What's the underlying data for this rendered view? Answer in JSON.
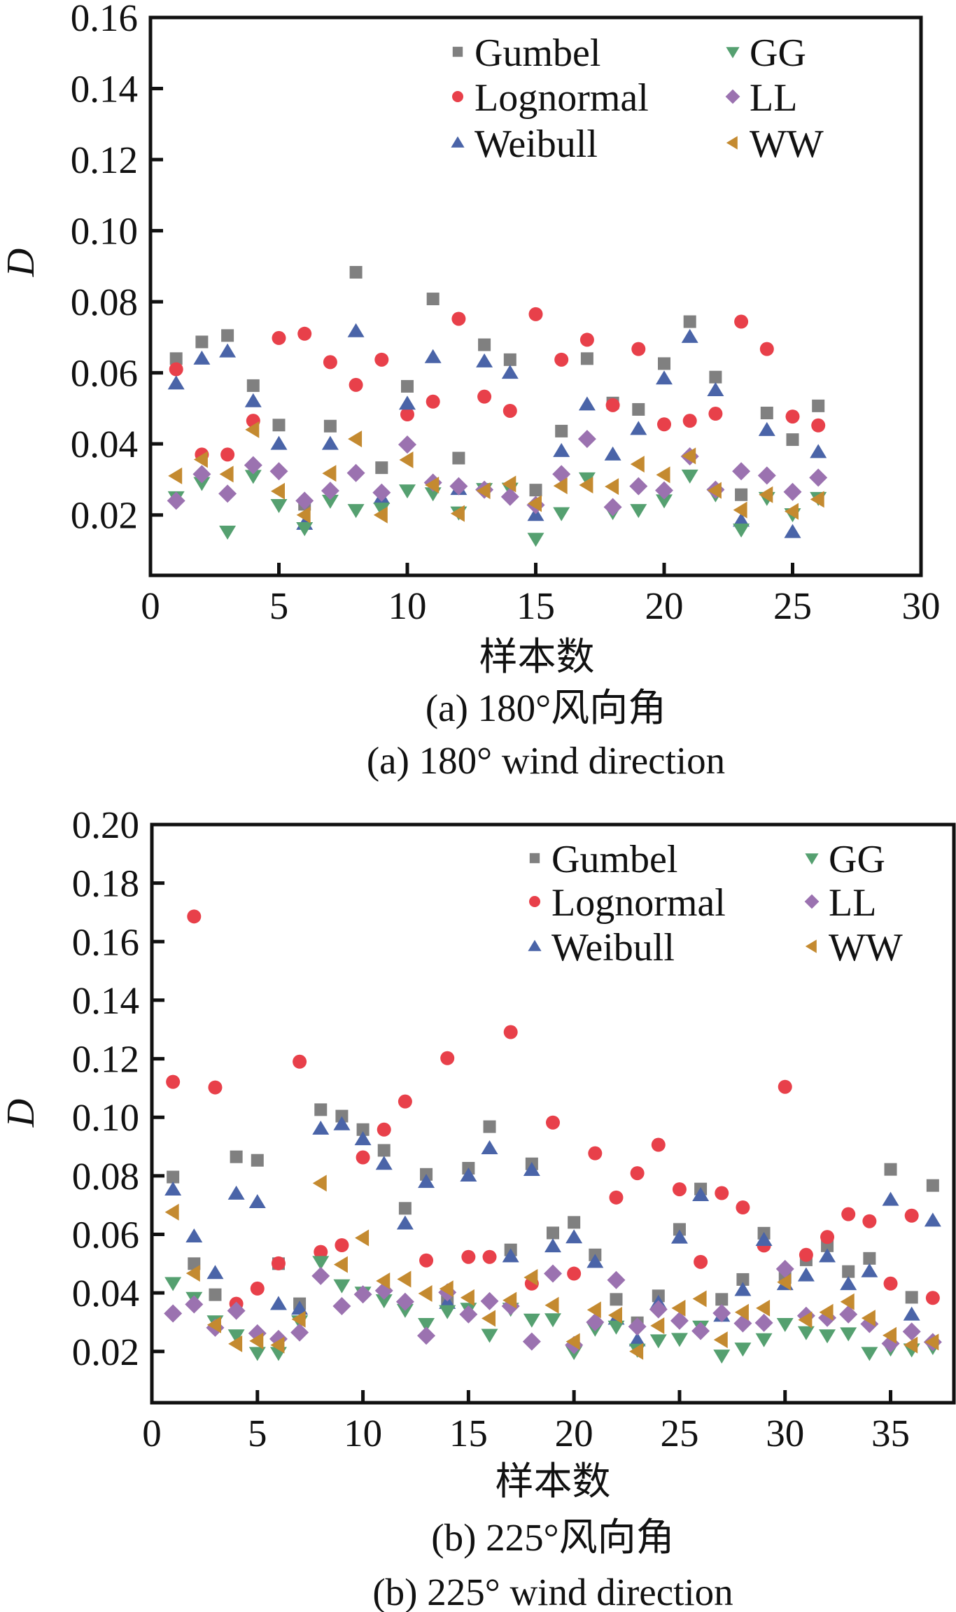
{
  "chart_data": [
    {
      "type": "scatter",
      "id": "a",
      "title": "",
      "xlabel": "样本数",
      "ylabel": "D",
      "caption_cn": "(a)  180°风向角",
      "caption_en": "(a)  180° wind direction",
      "xlim": [
        0,
        30
      ],
      "ylim": [
        0.003,
        0.16
      ],
      "xticks": [
        0,
        5,
        10,
        15,
        20,
        25,
        30
      ],
      "yticks": [
        0.02,
        0.04,
        0.06,
        0.08,
        0.1,
        0.12,
        0.14,
        0.16
      ],
      "ytick_labels": [
        "0.02",
        "0.04",
        "0.06",
        "0.08",
        "0.10",
        "0.12",
        "0.14",
        "0.16"
      ],
      "grid": false,
      "legend_position": "top-right",
      "x": [
        1,
        2,
        3,
        4,
        5,
        6,
        7,
        8,
        9,
        10,
        11,
        12,
        13,
        14,
        15,
        16,
        17,
        18,
        19,
        20,
        21,
        22,
        23,
        24,
        25,
        26
      ],
      "series": [
        {
          "name": "Gumbel",
          "marker": "square",
          "color": "#808080",
          "values": [
            0.064,
            0.0687,
            0.0705,
            0.0564,
            0.0453,
            0.023,
            0.045,
            0.0883,
            0.0333,
            0.0562,
            0.0808,
            0.036,
            0.0679,
            0.0637,
            0.027,
            0.0436,
            0.064,
            0.0515,
            0.0497,
            0.0626,
            0.0744,
            0.0588,
            0.0257,
            0.0487,
            0.0412,
            0.0507
          ]
        },
        {
          "name": "Lognormal",
          "marker": "circle",
          "color": "#e8404a",
          "values": [
            0.061,
            0.037,
            0.037,
            0.0465,
            0.0698,
            0.071,
            0.063,
            0.0566,
            0.0637,
            0.0483,
            0.0519,
            0.0752,
            0.0533,
            0.0493,
            0.0765,
            0.0637,
            0.0693,
            0.0509,
            0.0667,
            0.0455,
            0.0465,
            0.0485,
            0.0744,
            0.0667,
            0.0477,
            0.0452
          ]
        },
        {
          "name": "Weibull",
          "marker": "triangle-up",
          "color": "#4a64a8",
          "values": [
            0.057,
            0.064,
            0.066,
            0.052,
            0.04,
            0.0175,
            0.04,
            0.0717,
            0.0248,
            0.0513,
            0.0644,
            0.0273,
            0.0632,
            0.06,
            0.02,
            0.038,
            0.0511,
            0.037,
            0.0442,
            0.0584,
            0.0701,
            0.0551,
            0.0184,
            0.0439,
            0.0152,
            0.0377
          ]
        },
        {
          "name": "GG",
          "marker": "triangle-down",
          "color": "#55a070",
          "values": [
            0.025,
            0.029,
            0.0153,
            0.031,
            0.0228,
            0.0163,
            0.024,
            0.0214,
            0.0218,
            0.0269,
            0.0261,
            0.0207,
            0.0273,
            0.0274,
            0.0133,
            0.0205,
            0.0303,
            0.0208,
            0.0214,
            0.0241,
            0.0311,
            0.0258,
            0.0159,
            0.0248,
            0.0202,
            0.0248
          ]
        },
        {
          "name": "LL",
          "marker": "diamond",
          "color": "#9b72b0",
          "values": [
            0.024,
            0.0315,
            0.026,
            0.034,
            0.0323,
            0.024,
            0.0268,
            0.0318,
            0.0263,
            0.0398,
            0.0291,
            0.0281,
            0.0271,
            0.0251,
            0.0228,
            0.0315,
            0.0414,
            0.0222,
            0.0281,
            0.0269,
            0.0365,
            0.0271,
            0.0323,
            0.0311,
            0.0265,
            0.0305
          ]
        },
        {
          "name": "WW",
          "marker": "triangle-left",
          "color": "#c48a30",
          "values": [
            0.031,
            0.0356,
            0.0315,
            0.044,
            0.0267,
            0.02,
            0.0317,
            0.0414,
            0.02,
            0.0355,
            0.0284,
            0.0204,
            0.0268,
            0.0287,
            0.0232,
            0.0282,
            0.0284,
            0.028,
            0.0343,
            0.0313,
            0.0366,
            0.0269,
            0.0214,
            0.0257,
            0.021,
            0.0244
          ]
        }
      ]
    },
    {
      "type": "scatter",
      "id": "b",
      "title": "",
      "xlabel": "样本数",
      "ylabel": "D",
      "caption_cn": "(b)  225°风向角",
      "caption_en": "(b)  225° wind direction",
      "xlim": [
        0,
        38
      ],
      "ylim": [
        0.0025,
        0.2
      ],
      "xticks": [
        0,
        5,
        10,
        15,
        20,
        25,
        30,
        35
      ],
      "yticks": [
        0.02,
        0.04,
        0.06,
        0.08,
        0.1,
        0.12,
        0.14,
        0.16,
        0.18,
        0.2
      ],
      "ytick_labels": [
        "0.02",
        "0.04",
        "0.06",
        "0.08",
        "0.10",
        "0.12",
        "0.14",
        "0.16",
        "0.18",
        "0.20"
      ],
      "grid": false,
      "legend_position": "top-right",
      "x": [
        1,
        2,
        3,
        4,
        5,
        6,
        7,
        8,
        9,
        10,
        11,
        12,
        13,
        14,
        15,
        16,
        17,
        18,
        19,
        20,
        21,
        22,
        23,
        24,
        25,
        26,
        27,
        28,
        29,
        30,
        31,
        32,
        33,
        34,
        35,
        36,
        37
      ],
      "series": [
        {
          "name": "Gumbel",
          "marker": "square",
          "color": "#808080",
          "values": [
            0.0796,
            0.05,
            0.0394,
            0.0865,
            0.0853,
            0.05,
            0.0363,
            0.1026,
            0.1004,
            0.0958,
            0.0887,
            0.0689,
            0.0805,
            0.037,
            0.0826,
            0.0968,
            0.0547,
            0.0841,
            0.0605,
            0.0641,
            0.053,
            0.0378,
            0.0298,
            0.039,
            0.0617,
            0.0755,
            0.0378,
            0.0446,
            0.0604,
            0.0453,
            0.0513,
            0.0561,
            0.0473,
            0.0518,
            0.0822,
            0.0385,
            0.0767
          ]
        },
        {
          "name": "Lognormal",
          "marker": "circle",
          "color": "#e8404a",
          "values": [
            0.1121,
            0.1686,
            0.1102,
            0.0363,
            0.0415,
            0.0501,
            0.119,
            0.054,
            0.0563,
            0.0863,
            0.0958,
            0.1054,
            0.0511,
            0.1202,
            0.0523,
            0.0523,
            0.1291,
            0.0432,
            0.0982,
            0.0466,
            0.0877,
            0.0726,
            0.0809,
            0.0906,
            0.0754,
            0.0506,
            0.0741,
            0.0692,
            0.0562,
            0.1104,
            0.053,
            0.0591,
            0.0669,
            0.0645,
            0.0432,
            0.0664,
            0.0383
          ]
        },
        {
          "name": "Weibull",
          "marker": "triangle-up",
          "color": "#4a64a8",
          "values": [
            0.0753,
            0.0593,
            0.0468,
            0.0739,
            0.071,
            0.0362,
            0.0346,
            0.0961,
            0.0976,
            0.0925,
            0.0841,
            0.0637,
            0.0779,
            0.0366,
            0.0801,
            0.0894,
            0.0525,
            0.082,
            0.0559,
            0.059,
            0.0506,
            0.0312,
            0.0238,
            0.0366,
            0.0589,
            0.0734,
            0.0322,
            0.041,
            0.0581,
            0.043,
            0.046,
            0.0525,
            0.043,
            0.0474,
            0.0718,
            0.0326,
            0.0647
          ]
        },
        {
          "name": "GG",
          "marker": "triangle-down",
          "color": "#55a070",
          "values": [
            0.0434,
            0.0383,
            0.0303,
            0.0255,
            0.0195,
            0.0195,
            0.0303,
            0.0506,
            0.0426,
            0.0401,
            0.0375,
            0.0342,
            0.0294,
            0.0338,
            0.0346,
            0.0257,
            0.0346,
            0.0309,
            0.031,
            0.0198,
            0.0278,
            0.0285,
            0.0206,
            0.0238,
            0.0243,
            0.0285,
            0.0186,
            0.021,
            0.0242,
            0.0294,
            0.0266,
            0.0255,
            0.0262,
            0.0195,
            0.021,
            0.0207,
            0.0215
          ]
        },
        {
          "name": "LL",
          "marker": "diamond",
          "color": "#9b72b0",
          "values": [
            0.033,
            0.0361,
            0.0281,
            0.0339,
            0.0262,
            0.0243,
            0.0265,
            0.0458,
            0.0355,
            0.0395,
            0.0408,
            0.037,
            0.0254,
            0.0402,
            0.0327,
            0.0372,
            0.0355,
            0.0234,
            0.0466,
            0.0222,
            0.03,
            0.0444,
            0.0285,
            0.0344,
            0.0305,
            0.027,
            0.0331,
            0.0296,
            0.0298,
            0.0482,
            0.0322,
            0.0315,
            0.0327,
            0.0294,
            0.0227,
            0.0268,
            0.0232
          ]
        },
        {
          "name": "WW",
          "marker": "triangle-left",
          "color": "#c48a30",
          "values": [
            0.0676,
            0.0467,
            0.0291,
            0.0226,
            0.0236,
            0.0222,
            0.031,
            0.0775,
            0.0497,
            0.0588,
            0.0441,
            0.0447,
            0.0398,
            0.0414,
            0.0384,
            0.0313,
            0.0375,
            0.0453,
            0.0358,
            0.0234,
            0.0342,
            0.0324,
            0.02,
            0.0288,
            0.0348,
            0.038,
            0.024,
            0.0334,
            0.0348,
            0.0437,
            0.0308,
            0.0334,
            0.037,
            0.0314,
            0.0255,
            0.0222,
            0.0232
          ]
        }
      ]
    }
  ]
}
